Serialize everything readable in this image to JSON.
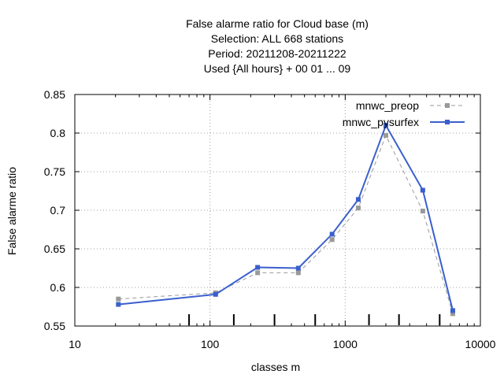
{
  "chart_data": {
    "type": "line",
    "title_lines": [
      "False alarme ratio  for Cloud base (m)",
      "Selection: ALL    668 stations",
      "Period: 20211208-20211222",
      "Used {All hours} + 00 01 ... 09"
    ],
    "xlabel": "classes m",
    "ylabel": "False alarme ratio",
    "x_scale": "log",
    "xlim": [
      10,
      10000
    ],
    "ylim": [
      0.55,
      0.85
    ],
    "x_ticks": [
      10,
      100,
      1000,
      10000
    ],
    "x_tick_labels": [
      "10",
      "100",
      "1000",
      "10000"
    ],
    "y_ticks": [
      0.55,
      0.6,
      0.65,
      0.7,
      0.75,
      0.8,
      0.85
    ],
    "y_tick_labels": [
      "0.55",
      "0.6",
      "0.65",
      "0.7",
      "0.75",
      "0.8",
      "0.85"
    ],
    "grid": true,
    "legend_position": "top-right",
    "class_markers": [
      70,
      150,
      300,
      600,
      1500,
      2500,
      5000
    ],
    "x": [
      21,
      110,
      225,
      450,
      800,
      1250,
      2000,
      3750,
      6250
    ],
    "series": [
      {
        "name": "mnwc_preop",
        "color": "#999999",
        "dashed": true,
        "values": [
          0.585,
          0.593,
          0.619,
          0.619,
          0.662,
          0.703,
          0.797,
          0.699,
          0.566
        ]
      },
      {
        "name": "mnwc_pysurfex",
        "color": "#3a5fcd",
        "dashed": false,
        "values": [
          0.578,
          0.591,
          0.626,
          0.625,
          0.669,
          0.714,
          0.81,
          0.726,
          0.57
        ]
      }
    ]
  }
}
